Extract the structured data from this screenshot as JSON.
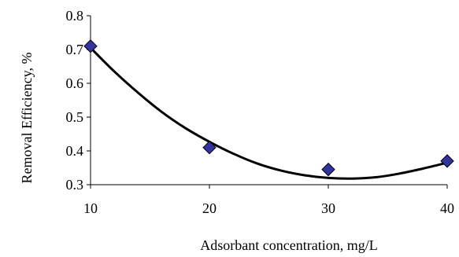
{
  "chart_data": {
    "type": "scatter",
    "xlabel": "Adsorbant concentration, mg/L",
    "ylabel": "Removal Efficiency, %",
    "xlim": [
      10,
      40
    ],
    "ylim": [
      0.3,
      0.8
    ],
    "x_ticks": [
      "10",
      "20",
      "30",
      "40"
    ],
    "y_ticks": [
      "0.3",
      "0.4",
      "0.5",
      "0.6",
      "0.7",
      "0.8"
    ],
    "grid": false,
    "legend": "none",
    "series": [
      {
        "marker": "diamond",
        "color": "#3333a0",
        "x": [
          10,
          20,
          30,
          40
        ],
        "y": [
          0.71,
          0.41,
          0.345,
          0.37
        ]
      }
    ],
    "trendline": {
      "type": "polynomial",
      "color": "#000000",
      "x": [
        10,
        12,
        14,
        16,
        18,
        20,
        22,
        24,
        26,
        28,
        30,
        32,
        34,
        36,
        38,
        40
      ],
      "y": [
        0.705,
        0.635,
        0.572,
        0.515,
        0.467,
        0.427,
        0.392,
        0.363,
        0.342,
        0.328,
        0.32,
        0.318,
        0.322,
        0.333,
        0.348,
        0.365
      ]
    }
  }
}
